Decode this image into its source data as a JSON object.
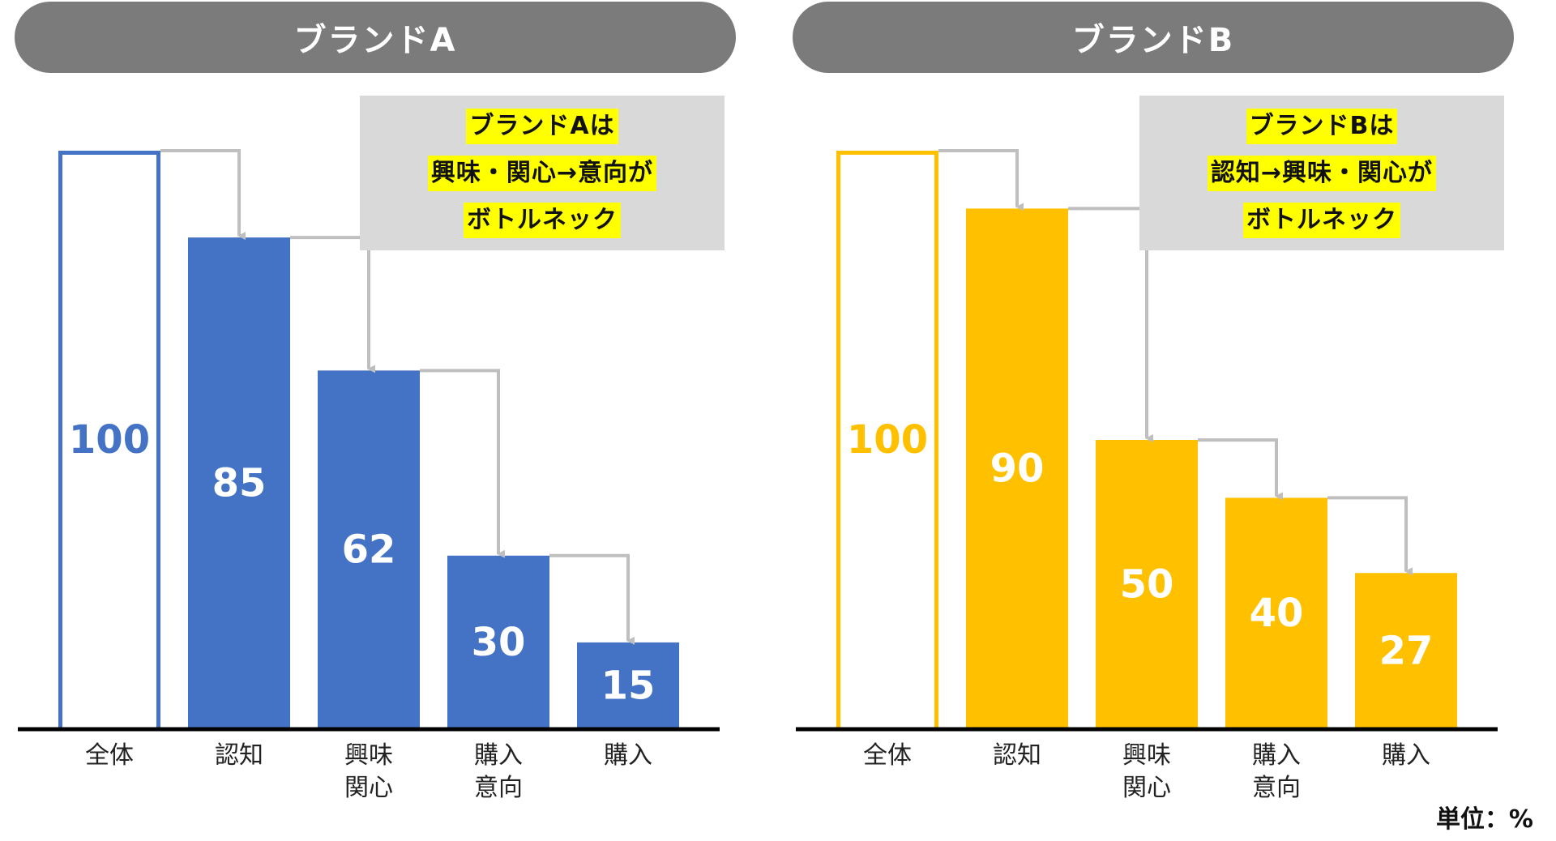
{
  "unit_label": "単位：%",
  "chart_data": [
    {
      "type": "bar",
      "title": "ブランドA",
      "categories": [
        [
          "全体"
        ],
        [
          "認知"
        ],
        [
          "興味",
          "関心"
        ],
        [
          "購入",
          "意向"
        ],
        [
          "購入"
        ]
      ],
      "values": [
        100,
        85,
        62,
        30,
        15
      ],
      "ylim": [
        0,
        100
      ],
      "color": "#4472c4",
      "annotation_lines": [
        "ブランドAは",
        "興味・関心→意向が",
        "ボトルネック"
      ]
    },
    {
      "type": "bar",
      "title": "ブランドB",
      "categories": [
        [
          "全体"
        ],
        [
          "認知"
        ],
        [
          "興味",
          "関心"
        ],
        [
          "購入",
          "意向"
        ],
        [
          "購入"
        ]
      ],
      "values": [
        100,
        90,
        50,
        40,
        27
      ],
      "ylim": [
        0,
        100
      ],
      "color": "#ffc000",
      "annotation_lines": [
        "ブランドBは",
        "認知→興味・関心が",
        "ボトルネック"
      ]
    }
  ]
}
